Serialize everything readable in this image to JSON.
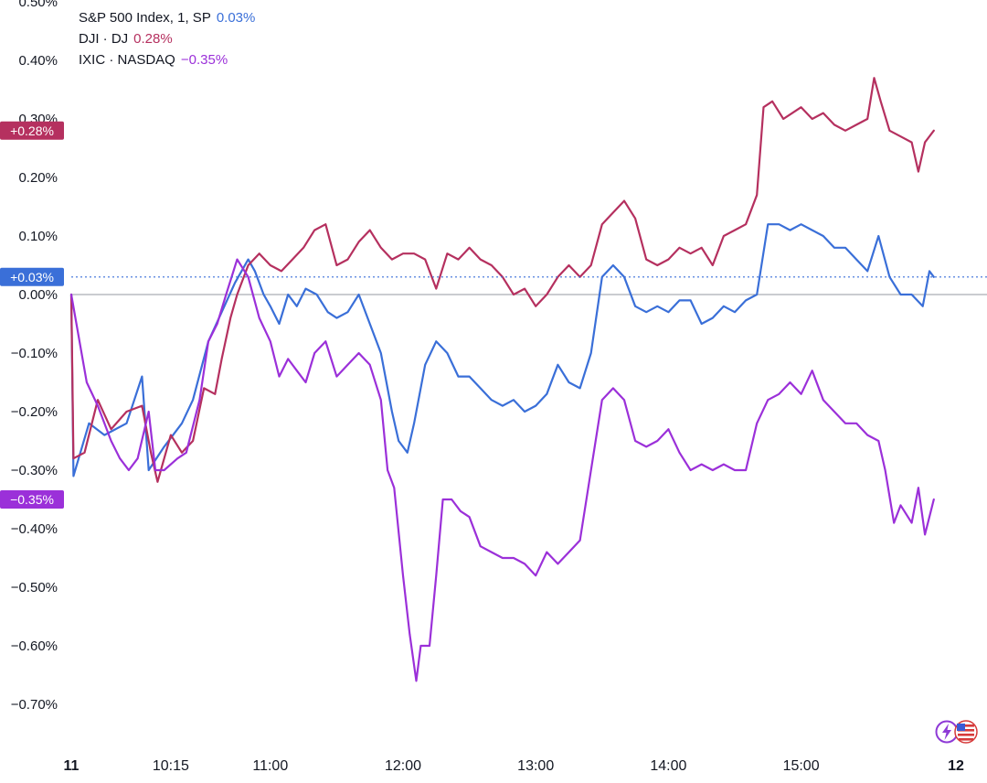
{
  "legend": {
    "items": [
      {
        "label": "S&P 500 Index, 1, SP",
        "value": "0.03%",
        "color": "#3a6fd8"
      },
      {
        "label": "DJI · DJ",
        "value": "0.28%",
        "color": "#b5305f"
      },
      {
        "label": "IXIC · NASDAQ",
        "value": "−0.35%",
        "color": "#9b30d9"
      }
    ]
  },
  "price_tags": [
    {
      "series": "DJI",
      "text": "+0.28%",
      "y": 0.28,
      "color": "#b5305f"
    },
    {
      "series": "S&P 500",
      "text": "+0.03%",
      "y": 0.03,
      "color": "#3a6fd8"
    },
    {
      "series": "IXIC",
      "text": "−0.35%",
      "y": -0.35,
      "color": "#9b30d9"
    }
  ],
  "icons": [
    "lightning-icon",
    "us-flag-icon"
  ],
  "chart_data": {
    "type": "line",
    "y_unit": "%",
    "ylim": [
      -0.8,
      0.5
    ],
    "xlim": [
      "09:30",
      "16:10"
    ],
    "y_ticks": [
      {
        "value": 0.5,
        "label": "0.50%"
      },
      {
        "value": 0.4,
        "label": "0.40%"
      },
      {
        "value": 0.3,
        "label": "0.30%"
      },
      {
        "value": 0.2,
        "label": "0.20%"
      },
      {
        "value": 0.1,
        "label": "0.10%"
      },
      {
        "value": 0.0,
        "label": "0.00%"
      },
      {
        "value": -0.1,
        "label": "−0.10%"
      },
      {
        "value": -0.2,
        "label": "−0.20%"
      },
      {
        "value": -0.3,
        "label": "−0.30%"
      },
      {
        "value": -0.4,
        "label": "−0.40%"
      },
      {
        "value": -0.5,
        "label": "−0.50%"
      },
      {
        "value": -0.6,
        "label": "−0.60%"
      },
      {
        "value": -0.7,
        "label": "−0.70%"
      }
    ],
    "x_ticks": [
      {
        "time": "09:30",
        "label": "11",
        "bold": true
      },
      {
        "time": "10:15",
        "label": "10:15",
        "bold": false
      },
      {
        "time": "11:00",
        "label": "11:00",
        "bold": false
      },
      {
        "time": "12:00",
        "label": "12:00",
        "bold": false
      },
      {
        "time": "13:00",
        "label": "13:00",
        "bold": false
      },
      {
        "time": "14:00",
        "label": "14:00",
        "bold": false
      },
      {
        "time": "15:00",
        "label": "15:00",
        "bold": false
      },
      {
        "time": "16:10",
        "label": "12",
        "bold": true
      }
    ],
    "grid": false,
    "zero_line": true,
    "legend_position": "top-left",
    "series": [
      {
        "name": "S&P 500 Index, 1, SP",
        "color": "#3a6fd8",
        "points": [
          [
            "09:30",
            0.0
          ],
          [
            "09:31",
            -0.31
          ],
          [
            "09:38",
            -0.22
          ],
          [
            "09:45",
            -0.24
          ],
          [
            "09:55",
            -0.22
          ],
          [
            "10:02",
            -0.14
          ],
          [
            "10:05",
            -0.3
          ],
          [
            "10:12",
            -0.26
          ],
          [
            "10:20",
            -0.22
          ],
          [
            "10:25",
            -0.18
          ],
          [
            "10:32",
            -0.08
          ],
          [
            "10:38",
            -0.03
          ],
          [
            "10:44",
            0.02
          ],
          [
            "10:50",
            0.06
          ],
          [
            "10:53",
            0.04
          ],
          [
            "10:57",
            0.0
          ],
          [
            "11:00",
            -0.02
          ],
          [
            "11:04",
            -0.05
          ],
          [
            "11:08",
            0.0
          ],
          [
            "11:12",
            -0.02
          ],
          [
            "11:16",
            0.01
          ],
          [
            "11:21",
            0.0
          ],
          [
            "11:26",
            -0.03
          ],
          [
            "11:30",
            -0.04
          ],
          [
            "11:35",
            -0.03
          ],
          [
            "11:40",
            0.0
          ],
          [
            "11:45",
            -0.05
          ],
          [
            "11:50",
            -0.1
          ],
          [
            "11:55",
            -0.2
          ],
          [
            "11:58",
            -0.25
          ],
          [
            "12:02",
            -0.27
          ],
          [
            "12:05",
            -0.22
          ],
          [
            "12:10",
            -0.12
          ],
          [
            "12:15",
            -0.08
          ],
          [
            "12:20",
            -0.1
          ],
          [
            "12:25",
            -0.14
          ],
          [
            "12:30",
            -0.14
          ],
          [
            "12:35",
            -0.16
          ],
          [
            "12:40",
            -0.18
          ],
          [
            "12:45",
            -0.19
          ],
          [
            "12:50",
            -0.18
          ],
          [
            "12:55",
            -0.2
          ],
          [
            "13:00",
            -0.19
          ],
          [
            "13:05",
            -0.17
          ],
          [
            "13:10",
            -0.12
          ],
          [
            "13:15",
            -0.15
          ],
          [
            "13:20",
            -0.16
          ],
          [
            "13:25",
            -0.1
          ],
          [
            "13:30",
            0.03
          ],
          [
            "13:35",
            0.05
          ],
          [
            "13:40",
            0.03
          ],
          [
            "13:45",
            -0.02
          ],
          [
            "13:50",
            -0.03
          ],
          [
            "13:55",
            -0.02
          ],
          [
            "14:00",
            -0.03
          ],
          [
            "14:05",
            -0.01
          ],
          [
            "14:10",
            -0.01
          ],
          [
            "14:15",
            -0.05
          ],
          [
            "14:20",
            -0.04
          ],
          [
            "14:25",
            -0.02
          ],
          [
            "14:30",
            -0.03
          ],
          [
            "14:35",
            -0.01
          ],
          [
            "14:40",
            0.0
          ],
          [
            "14:45",
            0.12
          ],
          [
            "14:50",
            0.12
          ],
          [
            "14:55",
            0.11
          ],
          [
            "15:00",
            0.12
          ],
          [
            "15:05",
            0.11
          ],
          [
            "15:10",
            0.1
          ],
          [
            "15:15",
            0.08
          ],
          [
            "15:20",
            0.08
          ],
          [
            "15:25",
            0.06
          ],
          [
            "15:30",
            0.04
          ],
          [
            "15:35",
            0.1
          ],
          [
            "15:40",
            0.03
          ],
          [
            "15:45",
            0.0
          ],
          [
            "15:50",
            0.0
          ],
          [
            "15:55",
            -0.02
          ],
          [
            "15:58",
            0.04
          ],
          [
            "16:00",
            0.03
          ]
        ]
      },
      {
        "name": "DJI · DJ",
        "color": "#b5305f",
        "points": [
          [
            "09:30",
            0.0
          ],
          [
            "09:31",
            -0.28
          ],
          [
            "09:36",
            -0.27
          ],
          [
            "09:42",
            -0.18
          ],
          [
            "09:48",
            -0.23
          ],
          [
            "09:55",
            -0.2
          ],
          [
            "10:02",
            -0.19
          ],
          [
            "10:06",
            -0.27
          ],
          [
            "10:09",
            -0.32
          ],
          [
            "10:15",
            -0.24
          ],
          [
            "10:20",
            -0.27
          ],
          [
            "10:25",
            -0.25
          ],
          [
            "10:30",
            -0.16
          ],
          [
            "10:35",
            -0.17
          ],
          [
            "10:38",
            -0.11
          ],
          [
            "10:42",
            -0.04
          ],
          [
            "10:45",
            0.0
          ],
          [
            "10:50",
            0.05
          ],
          [
            "10:55",
            0.07
          ],
          [
            "11:00",
            0.05
          ],
          [
            "11:05",
            0.04
          ],
          [
            "11:10",
            0.06
          ],
          [
            "11:15",
            0.08
          ],
          [
            "11:20",
            0.11
          ],
          [
            "11:25",
            0.12
          ],
          [
            "11:30",
            0.05
          ],
          [
            "11:35",
            0.06
          ],
          [
            "11:40",
            0.09
          ],
          [
            "11:45",
            0.11
          ],
          [
            "11:50",
            0.08
          ],
          [
            "11:55",
            0.06
          ],
          [
            "12:00",
            0.07
          ],
          [
            "12:05",
            0.07
          ],
          [
            "12:10",
            0.06
          ],
          [
            "12:15",
            0.01
          ],
          [
            "12:20",
            0.07
          ],
          [
            "12:25",
            0.06
          ],
          [
            "12:30",
            0.08
          ],
          [
            "12:35",
            0.06
          ],
          [
            "12:40",
            0.05
          ],
          [
            "12:45",
            0.03
          ],
          [
            "12:50",
            0.0
          ],
          [
            "12:55",
            0.01
          ],
          [
            "13:00",
            -0.02
          ],
          [
            "13:05",
            0.0
          ],
          [
            "13:10",
            0.03
          ],
          [
            "13:15",
            0.05
          ],
          [
            "13:20",
            0.03
          ],
          [
            "13:25",
            0.05
          ],
          [
            "13:30",
            0.12
          ],
          [
            "13:35",
            0.14
          ],
          [
            "13:40",
            0.16
          ],
          [
            "13:45",
            0.13
          ],
          [
            "13:50",
            0.06
          ],
          [
            "13:55",
            0.05
          ],
          [
            "14:00",
            0.06
          ],
          [
            "14:05",
            0.08
          ],
          [
            "14:10",
            0.07
          ],
          [
            "14:15",
            0.08
          ],
          [
            "14:20",
            0.05
          ],
          [
            "14:25",
            0.1
          ],
          [
            "14:30",
            0.11
          ],
          [
            "14:35",
            0.12
          ],
          [
            "14:40",
            0.17
          ],
          [
            "14:43",
            0.32
          ],
          [
            "14:47",
            0.33
          ],
          [
            "14:52",
            0.3
          ],
          [
            "15:00",
            0.32
          ],
          [
            "15:05",
            0.3
          ],
          [
            "15:10",
            0.31
          ],
          [
            "15:15",
            0.29
          ],
          [
            "15:20",
            0.28
          ],
          [
            "15:25",
            0.29
          ],
          [
            "15:30",
            0.3
          ],
          [
            "15:33",
            0.37
          ],
          [
            "15:36",
            0.33
          ],
          [
            "15:40",
            0.28
          ],
          [
            "15:45",
            0.27
          ],
          [
            "15:50",
            0.26
          ],
          [
            "15:53",
            0.21
          ],
          [
            "15:56",
            0.26
          ],
          [
            "16:00",
            0.28
          ]
        ]
      },
      {
        "name": "IXIC · NASDAQ",
        "color": "#9b30d9",
        "points": [
          [
            "09:30",
            0.0
          ],
          [
            "09:37",
            -0.15
          ],
          [
            "09:42",
            -0.19
          ],
          [
            "09:48",
            -0.25
          ],
          [
            "09:52",
            -0.28
          ],
          [
            "09:56",
            -0.3
          ],
          [
            "10:00",
            -0.28
          ],
          [
            "10:05",
            -0.2
          ],
          [
            "10:08",
            -0.3
          ],
          [
            "10:12",
            -0.3
          ],
          [
            "10:18",
            -0.28
          ],
          [
            "10:22",
            -0.27
          ],
          [
            "10:28",
            -0.18
          ],
          [
            "10:32",
            -0.08
          ],
          [
            "10:36",
            -0.05
          ],
          [
            "10:40",
            0.0
          ],
          [
            "10:45",
            0.06
          ],
          [
            "10:50",
            0.03
          ],
          [
            "10:55",
            -0.04
          ],
          [
            "11:00",
            -0.08
          ],
          [
            "11:04",
            -0.14
          ],
          [
            "11:08",
            -0.11
          ],
          [
            "11:12",
            -0.13
          ],
          [
            "11:16",
            -0.15
          ],
          [
            "11:20",
            -0.1
          ],
          [
            "11:25",
            -0.08
          ],
          [
            "11:30",
            -0.14
          ],
          [
            "11:35",
            -0.12
          ],
          [
            "11:40",
            -0.1
          ],
          [
            "11:45",
            -0.12
          ],
          [
            "11:50",
            -0.18
          ],
          [
            "11:53",
            -0.3
          ],
          [
            "11:56",
            -0.33
          ],
          [
            "12:00",
            -0.48
          ],
          [
            "12:03",
            -0.58
          ],
          [
            "12:06",
            -0.66
          ],
          [
            "12:08",
            -0.6
          ],
          [
            "12:12",
            -0.6
          ],
          [
            "12:15",
            -0.48
          ],
          [
            "12:18",
            -0.35
          ],
          [
            "12:22",
            -0.35
          ],
          [
            "12:26",
            -0.37
          ],
          [
            "12:30",
            -0.38
          ],
          [
            "12:35",
            -0.43
          ],
          [
            "12:40",
            -0.44
          ],
          [
            "12:45",
            -0.45
          ],
          [
            "12:50",
            -0.45
          ],
          [
            "12:55",
            -0.46
          ],
          [
            "13:00",
            -0.48
          ],
          [
            "13:05",
            -0.44
          ],
          [
            "13:10",
            -0.46
          ],
          [
            "13:15",
            -0.44
          ],
          [
            "13:20",
            -0.42
          ],
          [
            "13:25",
            -0.3
          ],
          [
            "13:30",
            -0.18
          ],
          [
            "13:35",
            -0.16
          ],
          [
            "13:40",
            -0.18
          ],
          [
            "13:45",
            -0.25
          ],
          [
            "13:50",
            -0.26
          ],
          [
            "13:55",
            -0.25
          ],
          [
            "14:00",
            -0.23
          ],
          [
            "14:05",
            -0.27
          ],
          [
            "14:10",
            -0.3
          ],
          [
            "14:15",
            -0.29
          ],
          [
            "14:20",
            -0.3
          ],
          [
            "14:25",
            -0.29
          ],
          [
            "14:30",
            -0.3
          ],
          [
            "14:35",
            -0.3
          ],
          [
            "14:40",
            -0.22
          ],
          [
            "14:45",
            -0.18
          ],
          [
            "14:50",
            -0.17
          ],
          [
            "14:55",
            -0.15
          ],
          [
            "15:00",
            -0.17
          ],
          [
            "15:05",
            -0.13
          ],
          [
            "15:10",
            -0.18
          ],
          [
            "15:15",
            -0.2
          ],
          [
            "15:20",
            -0.22
          ],
          [
            "15:25",
            -0.22
          ],
          [
            "15:30",
            -0.24
          ],
          [
            "15:35",
            -0.25
          ],
          [
            "15:38",
            -0.3
          ],
          [
            "15:42",
            -0.39
          ],
          [
            "15:45",
            -0.36
          ],
          [
            "15:50",
            -0.39
          ],
          [
            "15:53",
            -0.33
          ],
          [
            "15:56",
            -0.41
          ],
          [
            "16:00",
            -0.35
          ]
        ]
      }
    ]
  }
}
